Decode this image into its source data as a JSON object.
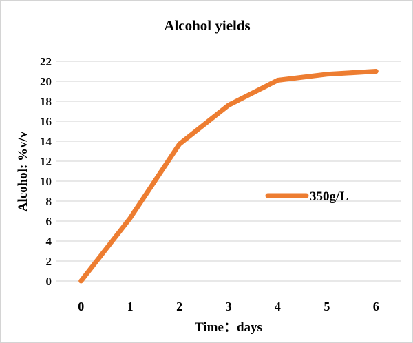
{
  "chart": {
    "colors": {
      "series": "#ED7D31",
      "grid": "#D9D9D9",
      "text": "#000000",
      "border": "#D4D4D4",
      "background": "#FFFFFF"
    }
  },
  "chart_data": {
    "type": "line",
    "title": "Alcohol yields",
    "categories": [
      0,
      1,
      2,
      3,
      4,
      5,
      6
    ],
    "series": [
      {
        "name": "350g/L",
        "color": "#ED7D31",
        "values": [
          0,
          6.3,
          13.7,
          17.6,
          20.1,
          20.7,
          21
        ]
      }
    ],
    "xlabel": "Time：days",
    "ylabel": "Alcohol: %v/v",
    "ylim": [
      0,
      22
    ],
    "ytick_step": 2,
    "xlim_categories": 7,
    "grid": true,
    "legend_position": "inside-right"
  }
}
